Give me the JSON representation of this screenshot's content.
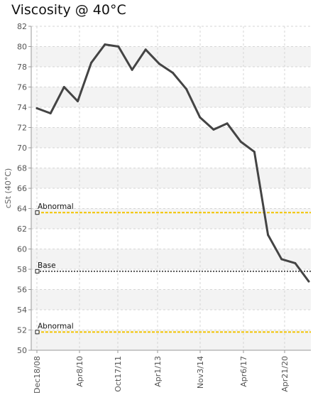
{
  "chart_data": {
    "type": "line",
    "title": "Viscosity @ 40°C",
    "ylabel": "cSt (40°C)",
    "xlabel": "",
    "ylim": [
      50,
      82
    ],
    "yticks": [
      50,
      52,
      54,
      56,
      58,
      60,
      62,
      64,
      66,
      68,
      70,
      72,
      74,
      76,
      78,
      80,
      82
    ],
    "xtick_labels": [
      "Dec18/08",
      "Apr8/10",
      "Oct17/11",
      "Apr1/13",
      "Nov3/14",
      "Apr6/17",
      "Apr21/20"
    ],
    "grid": true,
    "series": [
      {
        "values": [
          73.9,
          73.4,
          76.0,
          74.6,
          78.4,
          80.2,
          80.0,
          77.7,
          79.7,
          78.3,
          77.4,
          75.8,
          73.0,
          71.8,
          72.4,
          70.6,
          69.6,
          61.4,
          59.0,
          58.6,
          56.8
        ],
        "color": "#444444"
      }
    ],
    "reference_lines": [
      {
        "label": "Abnormal",
        "value": 63.6,
        "color": "#f2c300"
      },
      {
        "label": "Base",
        "value": 57.8,
        "color": "#555555"
      },
      {
        "label": "Abnormal",
        "value": 51.8,
        "color": "#f2c300"
      }
    ]
  }
}
